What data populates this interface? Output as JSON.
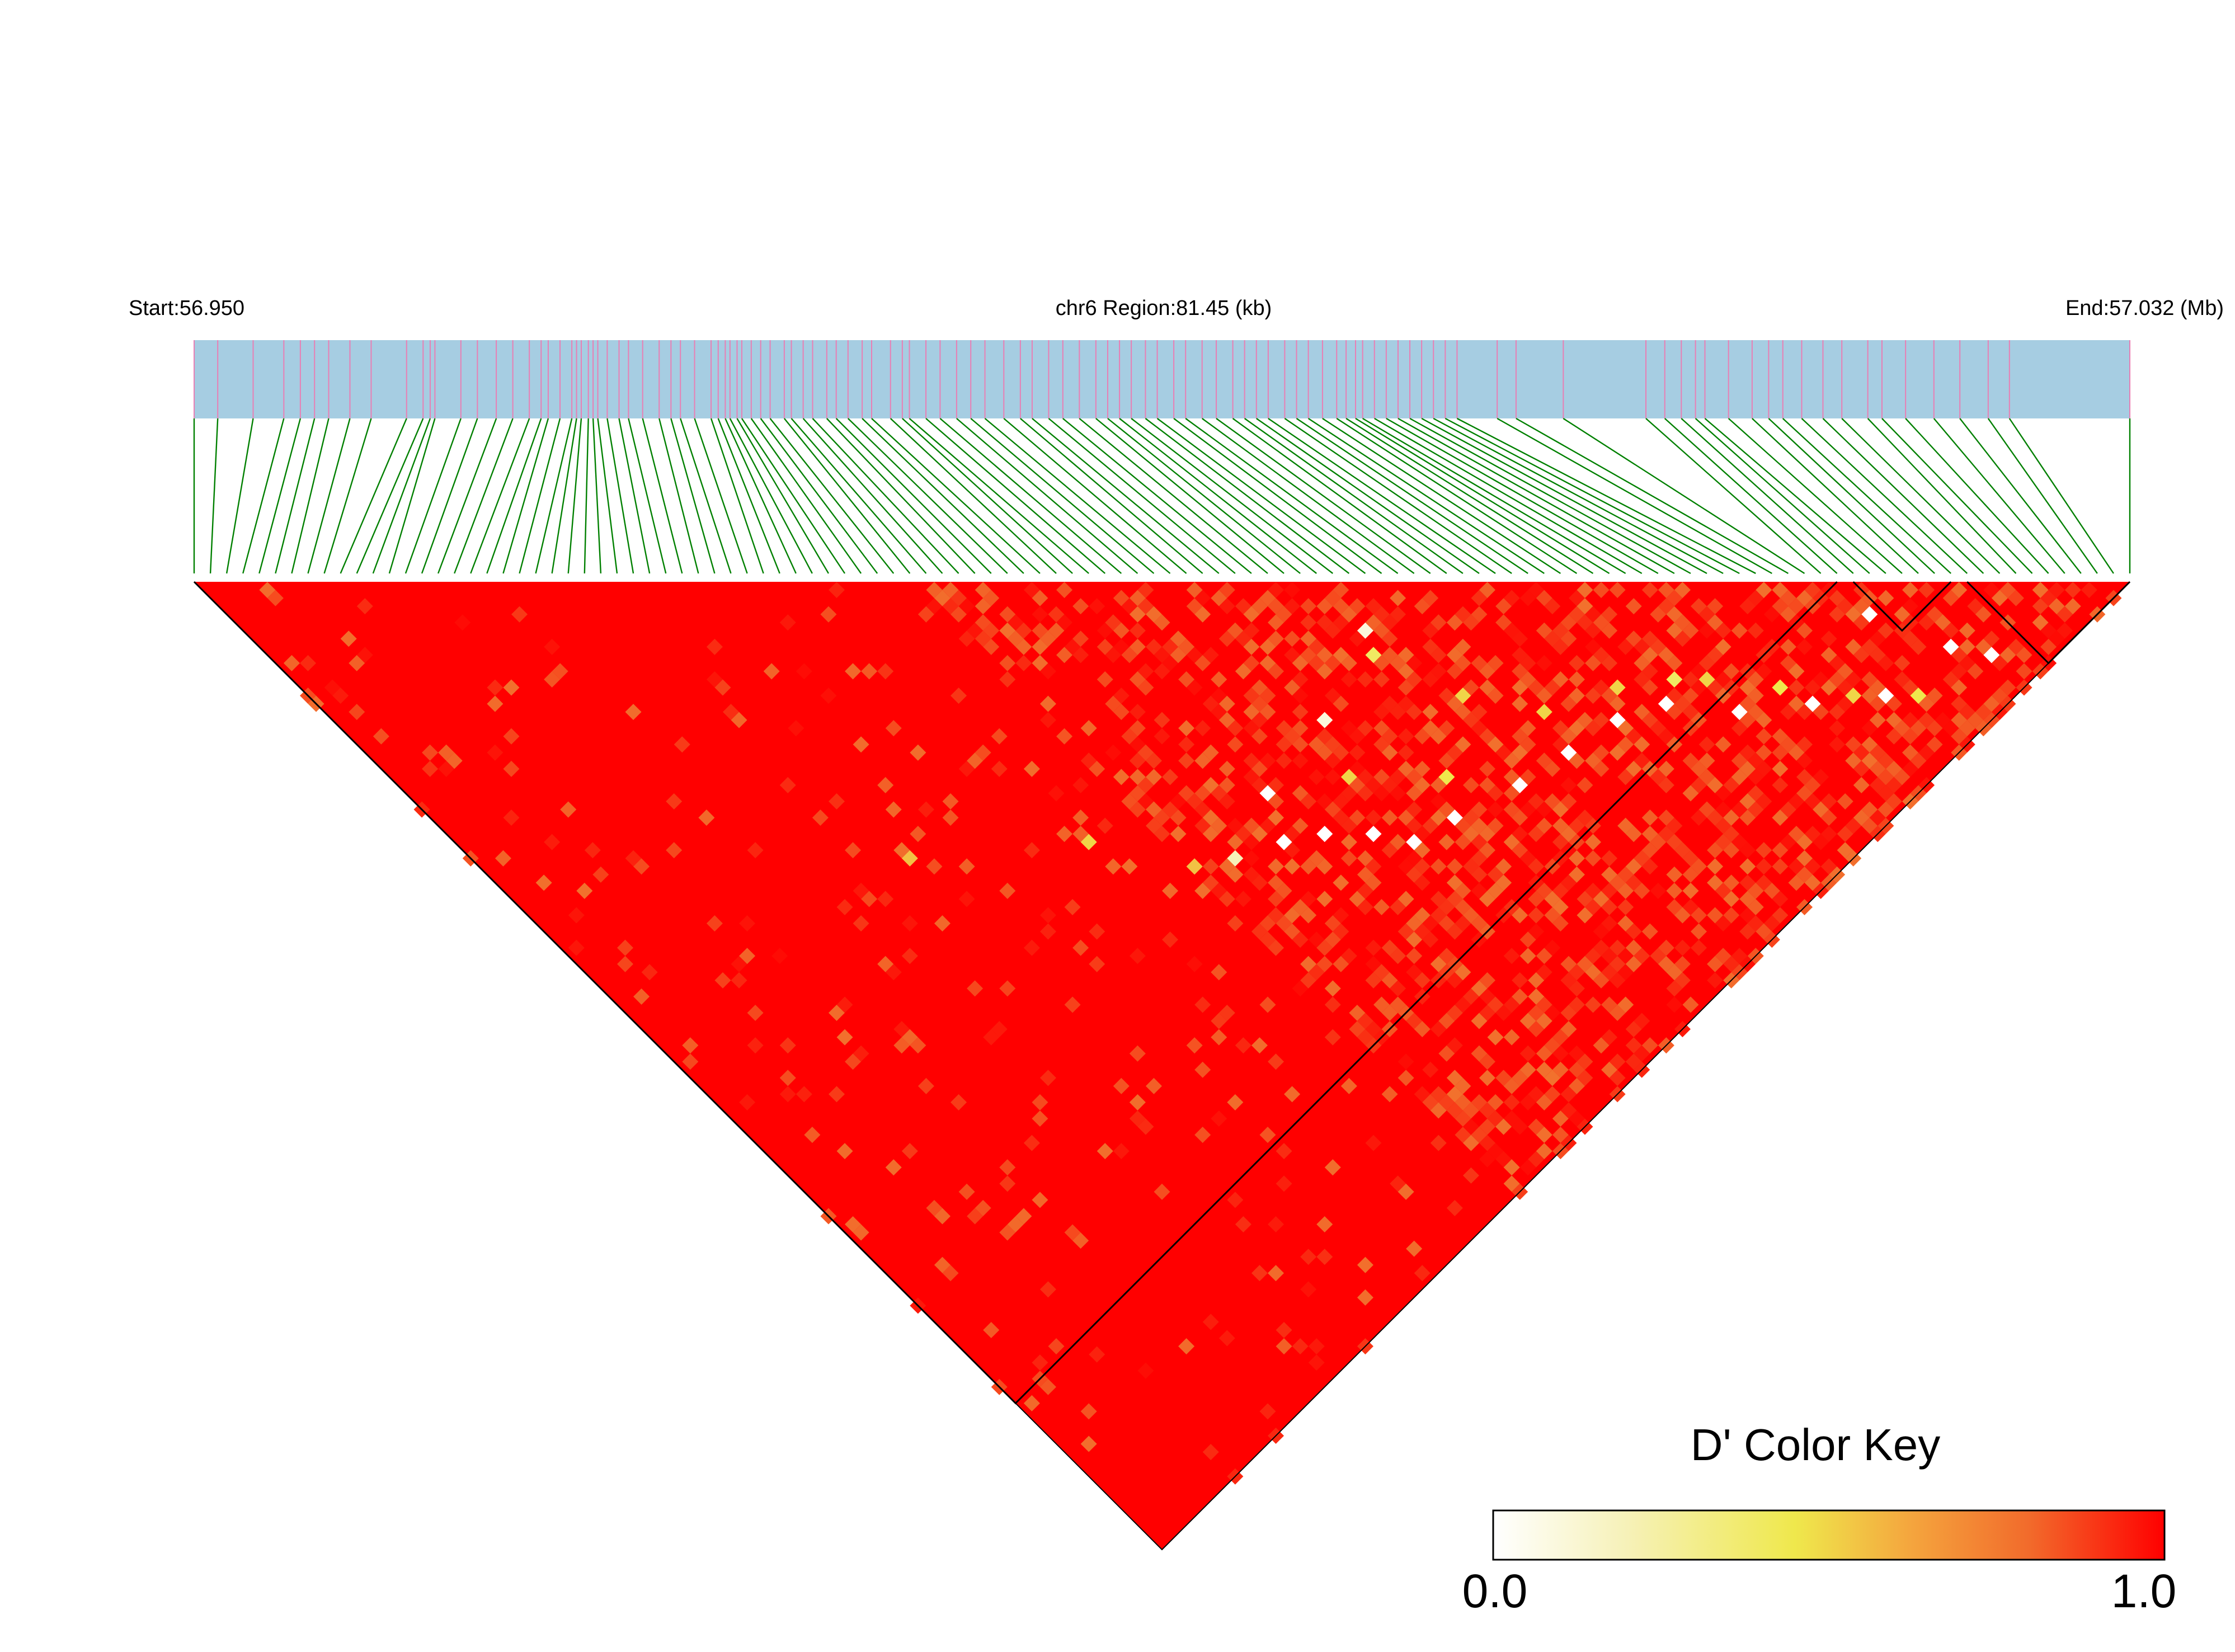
{
  "chart_data": {
    "type": "heatmap",
    "subtype": "linkage-disequilibrium-triangle",
    "header": {
      "start_label": "Start:56.950",
      "region_label": "chr6 Region:81.45 (kb)",
      "end_label": "End:57.032 (Mb)"
    },
    "region": {
      "chromosome": "chr6",
      "start_mb": 56.95,
      "end_mb": 57.032,
      "length_kb": 81.45
    },
    "snp_count": 120,
    "snp_positions_mb": [
      56.95,
      56.951,
      56.9525,
      56.9538,
      56.9545,
      56.9551,
      56.9557,
      56.9566,
      56.9575,
      56.959,
      56.9597,
      56.96,
      56.9602,
      56.9613,
      56.962,
      56.9628,
      56.9635,
      56.9642,
      56.9647,
      56.965,
      56.9655,
      56.966,
      56.9662,
      56.9664,
      56.9667,
      56.9669,
      56.9671,
      56.9675,
      56.968,
      56.9684,
      56.969,
      56.9697,
      56.9702,
      56.9706,
      56.9712,
      56.9719,
      56.9722,
      56.9725,
      56.9727,
      56.973,
      56.9732,
      56.9736,
      56.974,
      56.9744,
      56.975,
      56.9753,
      56.9758,
      56.9762,
      56.9768,
      56.9772,
      56.9777,
      56.9783,
      56.9787,
      56.9795,
      56.98,
      56.9803,
      56.981,
      56.9816,
      56.9823,
      56.9829,
      56.9835,
      56.9843,
      56.985,
      56.9855,
      56.9862,
      56.9868,
      56.9875,
      56.9882,
      56.9887,
      56.9892,
      56.9897,
      56.9903,
      56.9908,
      56.9915,
      56.992,
      56.9927,
      56.9933,
      56.994,
      56.9945,
      56.995,
      56.9955,
      56.9962,
      56.9967,
      56.9972,
      56.9978,
      56.9984,
      56.9988,
      56.9992,
      56.9995,
      57.0,
      57.0005,
      57.001,
      57.0015,
      57.002,
      57.0025,
      57.003,
      57.0035,
      57.0052,
      57.006,
      57.008,
      57.0115,
      57.0123,
      57.013,
      57.0136,
      57.014,
      57.015,
      57.016,
      57.0167,
      57.0173,
      57.0181,
      57.019,
      57.0198,
      57.0209,
      57.0215,
      57.0225,
      57.0237,
      57.0248,
      57.026,
      57.0269,
      57.032
    ],
    "value_label": "D'",
    "value_range": [
      0.0,
      1.0
    ],
    "dominant_value": 1.0,
    "ld_blocks": [
      {
        "first_snp": 1,
        "last_snp": 102
      },
      {
        "first_snp": 103,
        "last_snp": 109
      },
      {
        "first_snp": 110,
        "last_snp": 120
      }
    ],
    "notable_low_pairs": [
      {
        "snp_i": 102,
        "snp_j": 106,
        "d_prime": 0.0
      },
      {
        "snp_i": 93,
        "snp_j": 108,
        "d_prime": 0.0
      },
      {
        "snp_i": 88,
        "snp_j": 104,
        "d_prime": 0.0
      },
      {
        "snp_i": 84,
        "snp_j": 99,
        "d_prime": 0.0
      },
      {
        "snp_i": 80,
        "snp_j": 97,
        "d_prime": 0.0
      },
      {
        "snp_i": 75,
        "snp_j": 96,
        "d_prime": 0.0
      },
      {
        "snp_i": 70,
        "snp_j": 95,
        "d_prime": 0.0
      },
      {
        "snp_i": 64,
        "snp_j": 93,
        "d_prime": 0.0
      },
      {
        "snp_i": 60,
        "snp_j": 92,
        "d_prime": 0.0
      },
      {
        "snp_i": 58,
        "snp_j": 89,
        "d_prime": 0.0
      },
      {
        "snp_i": 55,
        "snp_j": 86,
        "d_prime": 0.0
      },
      {
        "snp_i": 52,
        "snp_j": 84,
        "d_prime": 0.0
      },
      {
        "snp_i": 54,
        "snp_j": 80,
        "d_prime": 0.0
      },
      {
        "snp_i": 62,
        "snp_j": 79,
        "d_prime": 0.1
      },
      {
        "snp_i": 70,
        "snp_j": 76,
        "d_prime": 0.1
      },
      {
        "snp_i": 48,
        "snp_j": 82,
        "d_prime": 0.2
      },
      {
        "snp_i": 98,
        "snp_j": 112,
        "d_prime": 0.0
      },
      {
        "snp_i": 105,
        "snp_j": 113,
        "d_prime": 0.0
      },
      {
        "snp_i": 107,
        "snp_j": 116,
        "d_prime": 0.0
      }
    ],
    "notable_mid_pairs": [
      {
        "snp_i": 82,
        "snp_j": 95,
        "d_prime": 0.5
      },
      {
        "snp_i": 86,
        "snp_j": 98,
        "d_prime": 0.4
      },
      {
        "snp_i": 72,
        "snp_j": 86,
        "d_prime": 0.5
      },
      {
        "snp_i": 66,
        "snp_j": 90,
        "d_prime": 0.45
      },
      {
        "snp_i": 60,
        "snp_j": 84,
        "d_prime": 0.5
      },
      {
        "snp_i": 45,
        "snp_j": 80,
        "d_prime": 0.55
      },
      {
        "snp_i": 40,
        "snp_j": 72,
        "d_prime": 0.5
      },
      {
        "snp_i": 28,
        "snp_j": 62,
        "d_prime": 0.55
      },
      {
        "snp_i": 88,
        "snp_j": 100,
        "d_prime": 0.5
      },
      {
        "snp_i": 92,
        "snp_j": 105,
        "d_prime": 0.45
      },
      {
        "snp_i": 76,
        "snp_j": 92,
        "d_prime": 0.5
      },
      {
        "snp_i": 69,
        "snp_j": 78,
        "d_prime": 0.4
      },
      {
        "snp_i": 96,
        "snp_j": 110,
        "d_prime": 0.5
      },
      {
        "snp_i": 100,
        "snp_j": 114,
        "d_prime": 0.45
      }
    ],
    "legend": {
      "title": "D' Color Key",
      "placement": "bottom-right",
      "min_label": "0.0",
      "max_label": "1.0",
      "stops": [
        "#ffffff",
        "#f4ee98",
        "#efe84c",
        "#f4a63e",
        "#f26a2b",
        "#ff0000"
      ]
    },
    "colors": {
      "gene_track": "#a6cde2",
      "snp_tick": "#e87fb4",
      "connector": "#008000",
      "high_ld": "#ff0000",
      "block_outline": "#000000"
    }
  }
}
